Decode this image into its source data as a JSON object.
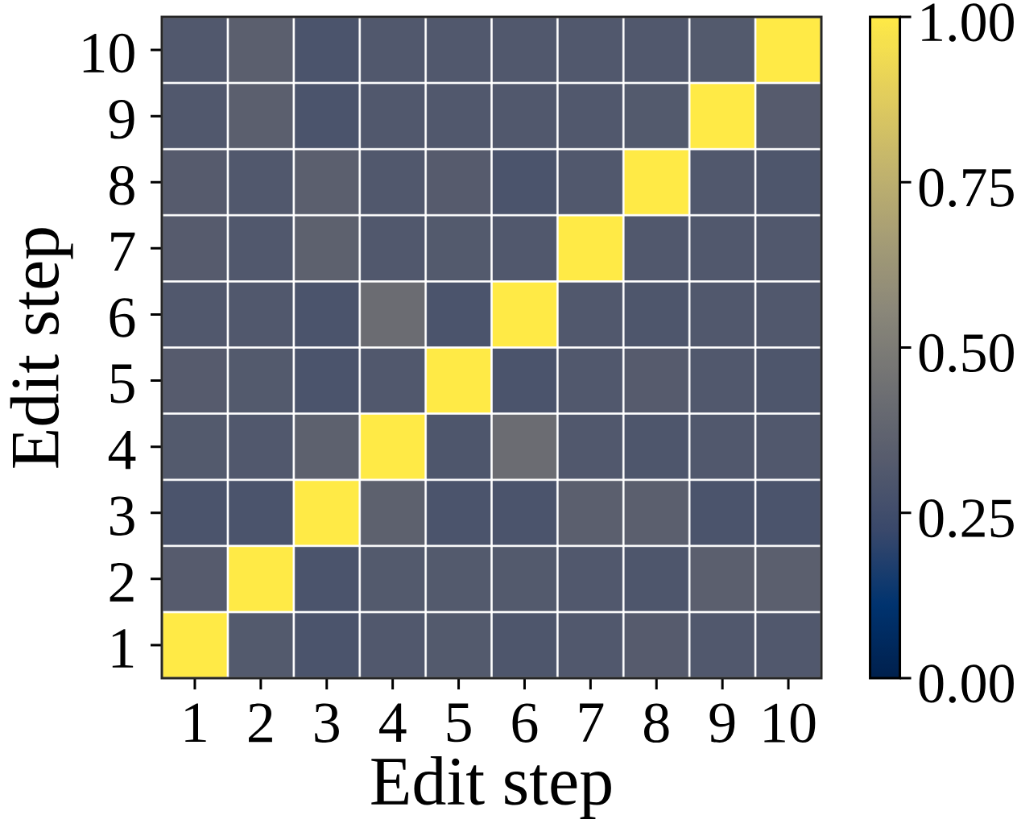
{
  "chart_data": {
    "type": "heatmap",
    "xlabel": "Edit step",
    "ylabel": "Edit step",
    "categories": [
      "1",
      "2",
      "3",
      "4",
      "5",
      "6",
      "7",
      "8",
      "9",
      "10"
    ],
    "y_categories": [
      "10",
      "9",
      "8",
      "7",
      "6",
      "5",
      "4",
      "3",
      "2",
      "1"
    ],
    "cells": [
      [
        0.31,
        0.35,
        0.29,
        0.31,
        0.31,
        0.31,
        0.31,
        0.31,
        0.32,
        1.0
      ],
      [
        0.31,
        0.35,
        0.29,
        0.31,
        0.31,
        0.31,
        0.31,
        0.32,
        1.0,
        0.33
      ],
      [
        0.33,
        0.31,
        0.35,
        0.31,
        0.33,
        0.29,
        0.31,
        1.0,
        0.31,
        0.3
      ],
      [
        0.33,
        0.31,
        0.36,
        0.31,
        0.32,
        0.31,
        1.0,
        0.31,
        0.31,
        0.31
      ],
      [
        0.31,
        0.31,
        0.29,
        0.42,
        0.29,
        1.0,
        0.31,
        0.3,
        0.31,
        0.31
      ],
      [
        0.33,
        0.32,
        0.29,
        0.31,
        1.0,
        0.29,
        0.31,
        0.33,
        0.31,
        0.3
      ],
      [
        0.32,
        0.31,
        0.36,
        1.0,
        0.3,
        0.42,
        0.31,
        0.3,
        0.31,
        0.31
      ],
      [
        0.29,
        0.29,
        1.0,
        0.36,
        0.29,
        0.29,
        0.35,
        0.35,
        0.29,
        0.29
      ],
      [
        0.33,
        1.0,
        0.29,
        0.32,
        0.32,
        0.32,
        0.31,
        0.3,
        0.35,
        0.35
      ],
      [
        1.0,
        0.32,
        0.29,
        0.31,
        0.32,
        0.3,
        0.31,
        0.33,
        0.31,
        0.31
      ]
    ],
    "clim": [
      0,
      1
    ],
    "cticks": [
      {
        "value": 0,
        "label": "0.00"
      },
      {
        "value": 0.25,
        "label": "0.25"
      },
      {
        "value": 0.5,
        "label": "0.50"
      },
      {
        "value": 0.75,
        "label": "0.75"
      },
      {
        "value": 1,
        "label": "1.00"
      }
    ]
  }
}
